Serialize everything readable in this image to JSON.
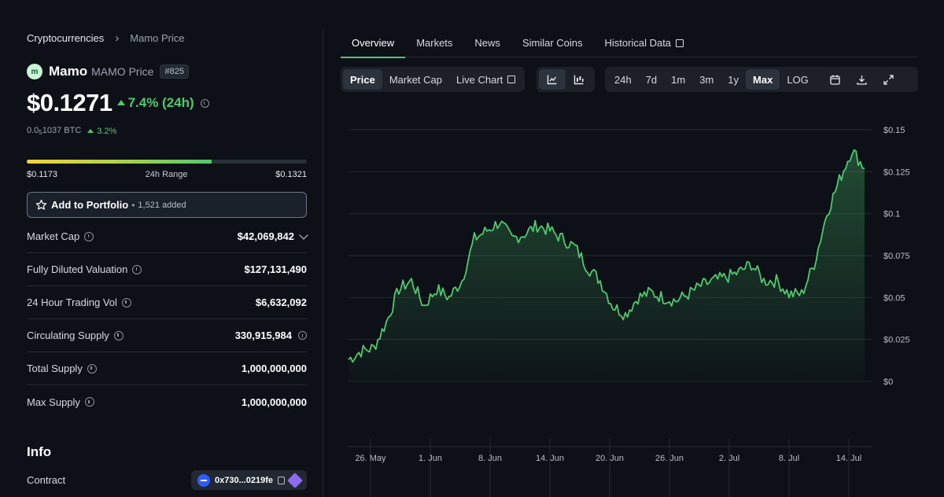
{
  "breadcrumb": {
    "parent": "Cryptocurrencies",
    "current": "Mamo Price"
  },
  "coin": {
    "name": "Mamo",
    "subtitle": "MAMO Price",
    "rank": "#825",
    "logo_letter": "m"
  },
  "price": {
    "usd": "$0.1271",
    "change_24h": "7.4% (24h)"
  },
  "btc": {
    "prefix": "0.0",
    "subscript": "5",
    "suffix": "1037 BTC",
    "change": "3.2%"
  },
  "range": {
    "low": "$0.1173",
    "label": "24h Range",
    "high": "$0.1321",
    "position": 0.66
  },
  "portfolio": {
    "label": "Add to Portfolio",
    "dot": "•",
    "count": "1,521 added"
  },
  "stats": [
    {
      "label": "Market Cap",
      "value": "$42,069,842"
    },
    {
      "label": "Fully Diluted Valuation",
      "value": "$127,131,490"
    },
    {
      "label": "24 Hour Trading Vol",
      "value": "$6,632,092"
    },
    {
      "label": "Circulating Supply",
      "value": "330,915,984"
    },
    {
      "label": "Total Supply",
      "value": "1,000,000,000"
    },
    {
      "label": "Max Supply",
      "value": "1,000,000,000"
    }
  ],
  "info": {
    "title": "Info",
    "contract_label": "Contract",
    "contract_address": "0x730...0219fe"
  },
  "tabs": [
    {
      "label": "Overview"
    },
    {
      "label": "Markets"
    },
    {
      "label": "News"
    },
    {
      "label": "Similar Coins"
    },
    {
      "label": "Historical Data"
    }
  ],
  "chart_modes": [
    {
      "label": "Price"
    },
    {
      "label": "Market Cap"
    },
    {
      "label": "Live Chart"
    }
  ],
  "ranges": [
    {
      "label": "24h"
    },
    {
      "label": "7d"
    },
    {
      "label": "1m"
    },
    {
      "label": "3m"
    },
    {
      "label": "1y"
    },
    {
      "label": "Max"
    },
    {
      "label": "LOG"
    }
  ],
  "icons": {
    "line_chart": "line-chart-icon",
    "candle_chart": "candlestick-icon",
    "calendar": "calendar-icon",
    "download": "download-icon",
    "fullscreen": "expand-icon"
  },
  "colors": {
    "accent": "#4ec970",
    "background": "#0d1117",
    "panel": "#1c2129"
  },
  "chart_data": {
    "type": "area",
    "series": [
      {
        "values": [
          0.013,
          0.018,
          0.02,
          0.035,
          0.055,
          0.06,
          0.045,
          0.055,
          0.05,
          0.06,
          0.085,
          0.09,
          0.095,
          0.085,
          0.088,
          0.093,
          0.09,
          0.085,
          0.08,
          0.068,
          0.06,
          0.045,
          0.04,
          0.05,
          0.053,
          0.05,
          0.048,
          0.052,
          0.057,
          0.06,
          0.062,
          0.065,
          0.07,
          0.06,
          0.06,
          0.052,
          0.052,
          0.07,
          0.1,
          0.12,
          0.138,
          0.127
        ]
      }
    ],
    "x_ticks": [
      "26. May",
      "1. Jun",
      "8. Jun",
      "14. Jun",
      "20. Jun",
      "26. Jun",
      "2. Jul",
      "8. Jul",
      "14. Jul"
    ],
    "y_ticks": [
      "$0",
      "$0.025",
      "$0.05",
      "$0.075",
      "$0.1",
      "$0.125",
      "$0.15"
    ],
    "ylim": [
      0,
      0.15
    ],
    "grid": true
  }
}
